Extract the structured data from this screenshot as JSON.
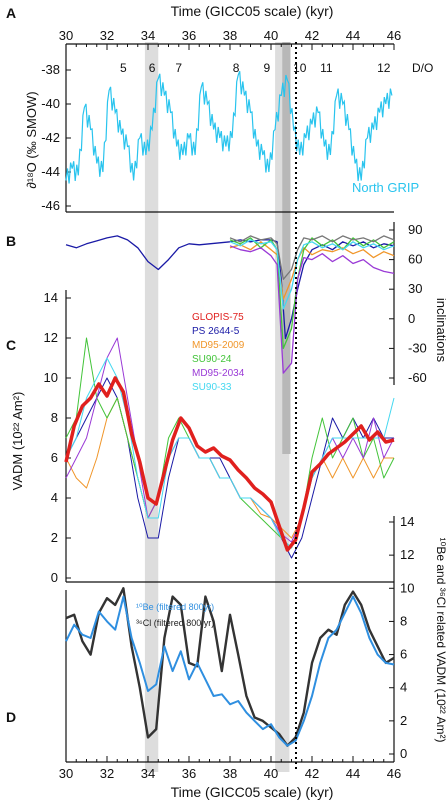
{
  "panels": {
    "a": "A",
    "b": "B",
    "c": "C",
    "d": "D"
  },
  "axes": {
    "x_top_label": "Time (GICC05 scale) (kyr)",
    "x_bottom_label": "Time (GICC05 scale) (kyr)",
    "x_ticks": [
      "30",
      "32",
      "34",
      "36",
      "38",
      "40",
      "42",
      "44",
      "46"
    ],
    "a_ylabel": "∂¹⁸O (‰ SMOW)",
    "a_yticks": [
      "-38",
      "-40",
      "-42",
      "-44",
      "-46"
    ],
    "b_ylabel": "inclinations",
    "b_yticks": [
      "90",
      "60",
      "30",
      "0",
      "-30",
      "-60"
    ],
    "c_ylabel": "VADM (10²² Am²)",
    "c_yticks": [
      "14",
      "12",
      "10",
      "8",
      "6",
      "4",
      "2",
      "0"
    ],
    "d_ylabel": "¹⁰Be and ³⁶Cl related VADM (10²² Am²)",
    "d_yticks": [
      "14",
      "12",
      "10",
      "8",
      "6",
      "4",
      "2",
      "0"
    ]
  },
  "do_events": {
    "header": "D/O",
    "labels": [
      "5",
      "6",
      "7",
      "8",
      "9",
      "10",
      "11",
      "12"
    ]
  },
  "series_labels": {
    "ngrip": "North GRIP",
    "be10": "¹⁰Be (filtered 800yr)",
    "cl36": "³⁶Cl (filtered 800 yr)"
  },
  "legend_c": [
    {
      "name": "GLOPIS-75",
      "color": "#e0201e"
    },
    {
      "name": "PS 2644-5",
      "color": "#1a1aa6"
    },
    {
      "name": "MD95-2009",
      "color": "#f0962a"
    },
    {
      "name": "SU90-24",
      "color": "#43c43a"
    },
    {
      "name": "MD95-2034",
      "color": "#9a3ad6"
    },
    {
      "name": "SU90-33",
      "color": "#45d8f0"
    }
  ],
  "colors": {
    "ngrip": "#29c4ee",
    "be10": "#2f8fe0",
    "cl36": "#333333",
    "shade": "#dddddd",
    "shade_dark": "#b8b8b8"
  },
  "chart_data": [
    {
      "type": "line",
      "panel": "A",
      "series": [
        {
          "name": "North GRIP",
          "x": [
            30,
            30.3,
            30.6,
            30.9,
            31.2,
            31.5,
            31.8,
            32.1,
            32.4,
            32.7,
            33.0,
            33.3,
            33.6,
            33.9,
            34.2,
            34.5,
            34.8,
            35.1,
            35.4,
            35.7,
            36.0,
            36.3,
            36.6,
            36.9,
            37.2,
            37.5,
            37.8,
            38.1,
            38.4,
            38.7,
            39.0,
            39.3,
            39.6,
            39.9,
            40.2,
            40.5,
            40.8,
            41.1,
            41.4,
            41.7,
            42.0,
            42.3,
            42.6,
            42.9,
            43.2,
            43.5,
            43.8,
            44.1,
            44.4,
            44.7,
            45.0,
            45.3,
            45.6,
            45.9
          ],
          "y": [
            -44.5,
            -43.8,
            -44.2,
            -40.2,
            -41.5,
            -43.5,
            -44.0,
            -39.2,
            -40.5,
            -41.8,
            -42.5,
            -44.5,
            -42.0,
            -43.0,
            -41.5,
            -38.5,
            -39.5,
            -40.5,
            -42.5,
            -43.0,
            -42.0,
            -43.0,
            -39.0,
            -40.0,
            -41.5,
            -42.0,
            -42.5,
            -42.0,
            -38.3,
            -39.5,
            -40.5,
            -42.5,
            -43.0,
            -44.0,
            -41.5,
            -39.5,
            -38.6,
            -41.5,
            -43.0,
            -42.0,
            -41.2,
            -40.5,
            -42.5,
            -43.0,
            -39.5,
            -40.0,
            -41.5,
            -43.5,
            -44.5,
            -42.0,
            -41.5,
            -40.5,
            -40.0,
            -39.5
          ]
        }
      ],
      "ylim": [
        -46.5,
        -37
      ]
    },
    {
      "type": "line",
      "panel": "B",
      "series": [
        {
          "name": "PS 2644-5",
          "x": [
            30,
            30.5,
            31,
            31.5,
            32,
            32.5,
            33,
            33.5,
            34,
            34.5,
            35,
            35.5,
            36,
            36.5,
            37,
            37.5,
            38,
            38.5,
            39,
            39.5,
            40,
            40.3,
            40.5,
            40.7,
            41,
            41.3,
            41.6,
            42,
            42.5,
            43,
            43.5,
            44,
            44.5,
            45,
            45.5,
            46
          ],
          "y": [
            75,
            72,
            76,
            79,
            82,
            84,
            80,
            72,
            58,
            50,
            60,
            72,
            76,
            75,
            76,
            77,
            78,
            80,
            78,
            80,
            80,
            78,
            40,
            -20,
            0,
            30,
            55,
            70,
            75,
            70,
            78,
            74,
            78,
            72,
            76,
            74
          ]
        },
        {
          "name": "MD95-2009",
          "x": [
            38,
            38.5,
            39,
            39.5,
            40,
            40.3,
            40.6,
            41,
            41.3,
            41.6,
            42,
            42.5,
            43,
            43.5,
            44,
            44.5,
            45,
            45.5,
            46
          ],
          "y": [
            72,
            75,
            70,
            78,
            70,
            65,
            20,
            40,
            60,
            72,
            65,
            70,
            68,
            72,
            66,
            70,
            62,
            68,
            64
          ]
        },
        {
          "name": "SU90-24",
          "x": [
            38,
            38.5,
            39,
            39.5,
            40,
            40.3,
            40.6,
            41,
            41.3,
            41.6,
            42,
            42.5,
            43,
            43.5,
            44,
            44.5,
            45,
            45.5,
            46
          ],
          "y": [
            80,
            76,
            82,
            72,
            80,
            70,
            -30,
            -10,
            40,
            70,
            82,
            74,
            80,
            70,
            82,
            74,
            80,
            72,
            78
          ]
        },
        {
          "name": "MD95-2034",
          "x": [
            38,
            38.5,
            39,
            39.5,
            40,
            40.3,
            40.6,
            41,
            41.3,
            41.6,
            42,
            42.5,
            43,
            43.5,
            44,
            44.5,
            45,
            45.5,
            46
          ],
          "y": [
            74,
            70,
            68,
            72,
            64,
            55,
            -55,
            -45,
            40,
            62,
            60,
            66,
            58,
            64,
            56,
            60,
            52,
            48,
            46
          ]
        },
        {
          "name": "SU90-33",
          "x": [
            38,
            38.5,
            39,
            39.5,
            40,
            40.3,
            40.6,
            41,
            41.3,
            41.6,
            42,
            42.5,
            43,
            43.5,
            44,
            44.5,
            45,
            45.5,
            46
          ],
          "y": [
            78,
            74,
            80,
            76,
            78,
            70,
            10,
            30,
            60,
            75,
            78,
            72,
            76,
            70,
            78,
            72,
            76,
            70,
            74
          ]
        },
        {
          "name": "",
          "x": [
            38,
            38.5,
            39,
            39.5,
            40,
            40.3,
            40.6,
            41,
            41.3,
            41.6,
            42,
            42.5,
            43,
            43.5,
            44,
            44.5,
            45,
            45.5,
            46
          ],
          "y": [
            82,
            78,
            84,
            80,
            82,
            76,
            40,
            50,
            70,
            82,
            80,
            84,
            78,
            84,
            80,
            82,
            78,
            84,
            80
          ]
        }
      ],
      "ylim": [
        -65,
        90
      ]
    },
    {
      "type": "line",
      "panel": "C",
      "series": [
        {
          "name": "GLOPIS-75",
          "x": [
            30,
            30.4,
            30.8,
            31.2,
            31.6,
            32,
            32.4,
            32.8,
            33.2,
            33.6,
            34,
            34.4,
            34.8,
            35.2,
            35.6,
            36,
            36.4,
            36.8,
            37.2,
            37.6,
            38,
            38.4,
            38.8,
            39.2,
            39.6,
            40,
            40.4,
            40.8,
            41.2,
            41.6,
            42,
            42.4,
            42.8,
            43.2,
            43.6,
            44,
            44.4,
            44.8,
            45.2,
            45.6,
            46
          ],
          "y": [
            5.8,
            7.6,
            8.6,
            9.0,
            9.7,
            9.1,
            10.0,
            9.3,
            7.2,
            5.8,
            4.0,
            3.7,
            5.3,
            6.9,
            8.0,
            7.5,
            6.6,
            6.3,
            6.5,
            6.1,
            5.9,
            5.4,
            5.0,
            4.5,
            4.2,
            3.8,
            2.6,
            1.4,
            1.9,
            3.5,
            5.3,
            5.7,
            6.2,
            6.5,
            6.8,
            7.2,
            7.6,
            6.9,
            7.3,
            6.8,
            6.9
          ]
        },
        {
          "name": "PS 2644-5",
          "x": [
            30,
            30.5,
            31,
            31.5,
            32,
            32.5,
            33,
            33.5,
            34,
            34.5,
            35,
            35.5,
            36,
            36.5,
            37,
            37.5,
            38,
            38.5,
            39,
            39.5,
            40,
            40.5,
            41,
            41.5,
            42,
            42.5,
            43,
            43.5,
            44,
            44.5,
            45,
            45.5,
            46
          ],
          "y": [
            6,
            7,
            8,
            9,
            10,
            9,
            7,
            4,
            2,
            2,
            5,
            7,
            7,
            6,
            6,
            6,
            5,
            4,
            4,
            3.5,
            3,
            2,
            1,
            2,
            4,
            6,
            8,
            7,
            8,
            7,
            8,
            7,
            7
          ]
        },
        {
          "name": "MD95-2009",
          "x": [
            30,
            30.5,
            31,
            31.5,
            32,
            32.5,
            33,
            33.5,
            34,
            34.5,
            35,
            35.5,
            36,
            36.5,
            37,
            37.5,
            38,
            38.5,
            39,
            39.5,
            40,
            40.5,
            41,
            41.5,
            42,
            42.5,
            43,
            43.5,
            44,
            44.5,
            45,
            45.5,
            46
          ],
          "y": [
            6,
            5,
            4.5,
            6,
            8,
            9,
            7,
            5,
            3,
            4,
            6,
            7,
            7,
            6,
            6,
            5,
            5,
            4,
            4,
            3.2,
            3,
            2.5,
            2,
            3,
            5,
            6,
            5,
            6,
            5,
            6,
            5,
            6,
            6
          ]
        },
        {
          "name": "SU90-24",
          "x": [
            30,
            30.5,
            31,
            31.5,
            32,
            32.5,
            33,
            33.5,
            34,
            34.5,
            35,
            35.5,
            36,
            36.5,
            37,
            37.5,
            38,
            38.5,
            39,
            39.5,
            40,
            40.5,
            41,
            41.5,
            42,
            42.5,
            43,
            43.5,
            44,
            44.5,
            45,
            45.5,
            46
          ],
          "y": [
            7,
            8,
            12,
            9,
            8,
            9,
            7,
            5,
            3,
            4,
            7,
            8,
            7,
            6,
            6,
            5,
            5,
            4,
            3.5,
            3,
            2.5,
            2,
            1.5,
            3,
            6,
            8,
            6,
            7,
            8,
            6,
            7,
            5,
            6
          ]
        },
        {
          "name": "MD95-2034",
          "x": [
            30,
            30.5,
            31,
            31.5,
            32,
            32.5,
            33,
            33.5,
            34,
            34.5,
            35,
            35.5,
            36,
            36.5,
            37,
            37.5,
            38,
            38.5,
            39,
            39.5,
            40,
            40.5,
            41,
            41.5,
            42,
            42.5,
            43,
            43.5,
            44,
            44.5,
            45,
            45.5,
            46
          ],
          "y": [
            5,
            6,
            7,
            9,
            11,
            12,
            9,
            6,
            3,
            4,
            6,
            7,
            7,
            6,
            6,
            5,
            5,
            4,
            4,
            3.5,
            3,
            2.2,
            1.8,
            3,
            5,
            6,
            7,
            6,
            7,
            6,
            8,
            6,
            7
          ]
        },
        {
          "name": "SU90-33",
          "x": [
            30,
            30.5,
            31,
            31.5,
            32,
            32.5,
            33,
            33.5,
            34,
            34.5,
            35,
            35.5,
            36,
            36.5,
            37,
            37.5,
            38,
            38.5,
            39,
            39.5,
            40,
            40.5,
            41,
            41.5,
            42,
            42.5,
            43,
            43.5,
            44,
            44.5,
            45,
            45.5,
            46
          ],
          "y": [
            6,
            7,
            9,
            10,
            11,
            10,
            8,
            5,
            3,
            3,
            6,
            7,
            7,
            6,
            6,
            5,
            5,
            4,
            4,
            3.5,
            3,
            2,
            1.5,
            3,
            5,
            6,
            7,
            7,
            7,
            7,
            7,
            7,
            9
          ]
        }
      ],
      "ylim": [
        0,
        14
      ]
    },
    {
      "type": "line",
      "panel": "D",
      "series": [
        {
          "name": "¹⁰Be (filtered 800yr)",
          "x": [
            30,
            30.4,
            30.8,
            31.2,
            31.6,
            32,
            32.4,
            32.8,
            33.2,
            33.6,
            34,
            34.4,
            34.8,
            35.2,
            35.6,
            36,
            36.4,
            36.8,
            37.2,
            37.6,
            38,
            38.4,
            38.8,
            39.2,
            39.6,
            40,
            40.4,
            40.8,
            41.2,
            41.6,
            42,
            42.4,
            42.8,
            43.2,
            43.6,
            44,
            44.4,
            44.8,
            45.2,
            45.6,
            46
          ],
          "y": [
            6.8,
            7.8,
            7.2,
            7.0,
            8.6,
            8.0,
            7.5,
            9.5,
            7.0,
            5.5,
            3.8,
            4.2,
            6.5,
            5.0,
            6.2,
            4.5,
            5.5,
            4.5,
            3.5,
            3.6,
            3.0,
            3.2,
            2.5,
            2.0,
            1.5,
            1.8,
            1.0,
            0.5,
            0.8,
            2.0,
            3.5,
            5.5,
            7.0,
            7.5,
            8.5,
            9.5,
            8.5,
            7.0,
            6.0,
            5.5,
            5.4
          ]
        },
        {
          "name": "³⁶Cl (filtered 800 yr)",
          "x": [
            30,
            30.4,
            30.8,
            31.2,
            31.6,
            32,
            32.4,
            32.8,
            33.2,
            33.6,
            34,
            34.4,
            34.8,
            35.2,
            35.6,
            36,
            36.4,
            36.8,
            37.2,
            37.6,
            38,
            38.4,
            38.8,
            39.2,
            39.6,
            40,
            40.4,
            40.8,
            41.2,
            41.6,
            42,
            42.4,
            42.8,
            43.2,
            43.6,
            44,
            44.4,
            44.8,
            45.2,
            45.6,
            46
          ],
          "y": [
            8.2,
            8.4,
            6.8,
            6.0,
            8.5,
            9.4,
            9.0,
            10.0,
            6.5,
            4.0,
            1.0,
            1.5,
            7.0,
            9.5,
            9.0,
            5.5,
            5.3,
            9.5,
            8.0,
            5.0,
            8.4,
            6.0,
            3.5,
            2.2,
            2.0,
            1.6,
            1.2,
            0.5,
            1.0,
            2.5,
            5.5,
            7.0,
            7.5,
            7.2,
            9.0,
            9.8,
            9.0,
            7.5,
            6.5,
            5.5,
            5.8
          ]
        }
      ],
      "ylim": [
        0,
        10
      ]
    }
  ]
}
